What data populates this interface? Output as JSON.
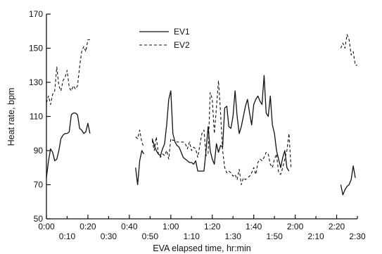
{
  "chart_data": {
    "type": "line",
    "title": "",
    "xlabel": "EVA elapsed time, hr:min",
    "ylabel": "Heat rate, bpm",
    "xlim": [
      0,
      150
    ],
    "ylim": [
      50,
      170
    ],
    "x_unit": "minutes",
    "grid": false,
    "legend_position": "top-center",
    "x_ticks_row1": [
      {
        "value": 0,
        "label": "0:00"
      },
      {
        "value": 20,
        "label": "0:20"
      },
      {
        "value": 40,
        "label": "0:40"
      },
      {
        "value": 60,
        "label": "1:00"
      },
      {
        "value": 80,
        "label": "1:20"
      },
      {
        "value": 100,
        "label": "1:40"
      },
      {
        "value": 120,
        "label": "2:00"
      },
      {
        "value": 140,
        "label": "2:20"
      }
    ],
    "x_ticks_row2": [
      {
        "value": 10,
        "label": "0:10"
      },
      {
        "value": 30,
        "label": "0:30"
      },
      {
        "value": 50,
        "label": "0:50"
      },
      {
        "value": 70,
        "label": "1:10"
      },
      {
        "value": 90,
        "label": "1:30"
      },
      {
        "value": 110,
        "label": "1:50"
      },
      {
        "value": 130,
        "label": "2:10"
      },
      {
        "value": 150,
        "label": "2:30"
      }
    ],
    "y_ticks": [
      {
        "value": 50,
        "label": "50"
      },
      {
        "value": 70,
        "label": "70"
      },
      {
        "value": 90,
        "label": "90"
      },
      {
        "value": 110,
        "label": "110"
      },
      {
        "value": 130,
        "label": "130"
      },
      {
        "value": 150,
        "label": "150"
      },
      {
        "value": 170,
        "label": "170"
      }
    ],
    "series": [
      {
        "name": "EV1",
        "style": "solid",
        "color": "#111111",
        "segments": [
          [
            [
              0,
              74
            ],
            [
              1,
              84
            ],
            [
              2,
              91
            ],
            [
              3,
              89
            ],
            [
              4,
              84
            ],
            [
              5,
              85
            ],
            [
              6,
              90
            ],
            [
              7,
              97
            ],
            [
              8,
              99
            ],
            [
              9,
              100
            ],
            [
              10,
              100
            ],
            [
              11,
              101
            ],
            [
              12,
              111
            ],
            [
              13,
              112
            ],
            [
              14,
              112
            ],
            [
              15,
              111
            ],
            [
              16,
              103
            ],
            [
              17,
              102
            ],
            [
              18,
              100
            ],
            [
              19,
              101
            ],
            [
              20,
              106
            ],
            [
              21,
              100
            ]
          ],
          [
            [
              43,
              80
            ],
            [
              44,
              70
            ],
            [
              45,
              84
            ],
            [
              46,
              90
            ],
            [
              47,
              88
            ]
          ],
          [
            [
              51,
              97
            ],
            [
              52,
              93
            ],
            [
              53,
              90
            ],
            [
              54,
              88
            ],
            [
              55,
              87
            ],
            [
              56,
              91
            ],
            [
              57,
              94
            ],
            [
              58,
              105
            ],
            [
              59,
              120
            ],
            [
              60,
              125
            ],
            [
              61,
              100
            ],
            [
              62,
              95
            ],
            [
              63,
              93
            ],
            [
              64,
              92
            ],
            [
              65,
              89
            ],
            [
              66,
              86
            ],
            [
              67,
              85
            ],
            [
              68,
              84
            ],
            [
              69,
              83
            ],
            [
              70,
              83
            ],
            [
              71,
              82
            ],
            [
              72,
              84
            ],
            [
              73,
              78
            ],
            [
              74,
              78
            ],
            [
              75,
              78
            ],
            [
              76,
              78
            ],
            [
              77,
              90
            ],
            [
              78,
              104
            ],
            [
              79,
              90
            ],
            [
              80,
              85
            ],
            [
              81,
              82
            ],
            [
              82,
              94
            ],
            [
              83,
              89
            ],
            [
              84,
              93
            ],
            [
              85,
              92
            ],
            [
              86,
              115
            ],
            [
              87,
              116
            ],
            [
              88,
              104
            ],
            [
              89,
              103
            ],
            [
              90,
              110
            ],
            [
              91,
              125
            ],
            [
              92,
              110
            ],
            [
              93,
              100
            ],
            [
              94,
              104
            ],
            [
              95,
              110
            ],
            [
              96,
              116
            ],
            [
              97,
              120
            ],
            [
              98,
              112
            ],
            [
              99,
              105
            ],
            [
              100,
              117
            ],
            [
              101,
              120
            ],
            [
              102,
              122
            ],
            [
              103,
              119
            ],
            [
              104,
              117
            ],
            [
              105,
              134
            ],
            [
              106,
              112
            ],
            [
              107,
              110
            ],
            [
              108,
              122
            ],
            [
              109,
              105
            ],
            [
              110,
              100
            ],
            [
              111,
              90
            ],
            [
              112,
              85
            ],
            [
              113,
              80
            ],
            [
              114,
              86
            ],
            [
              115,
              90
            ],
            [
              116,
              80
            ],
            [
              117,
              78
            ]
          ],
          [
            [
              142,
              70
            ],
            [
              143,
              64
            ],
            [
              144,
              67
            ],
            [
              145,
              69
            ],
            [
              146,
              70
            ],
            [
              147,
              73
            ],
            [
              148,
              81
            ],
            [
              149,
              74
            ]
          ]
        ]
      },
      {
        "name": "EV2",
        "style": "dashed",
        "color": "#111111",
        "segments": [
          [
            [
              0,
              118
            ],
            [
              1,
              122
            ],
            [
              2,
              117
            ],
            [
              3,
              123
            ],
            [
              4,
              125
            ],
            [
              5,
              139
            ],
            [
              6,
              128
            ],
            [
              7,
              125
            ],
            [
              8,
              131
            ],
            [
              9,
              133
            ],
            [
              10,
              137
            ],
            [
              11,
              127
            ],
            [
              12,
              125
            ],
            [
              13,
              128
            ],
            [
              14,
              126
            ],
            [
              15,
              128
            ],
            [
              16,
              139
            ],
            [
              17,
              148
            ],
            [
              18,
              151
            ],
            [
              19,
              148
            ],
            [
              20,
              155
            ],
            [
              21,
              155
            ]
          ],
          [
            [
              43,
              98
            ],
            [
              44,
              97
            ],
            [
              45,
              102
            ],
            [
              46,
              95
            ],
            [
              47,
              92
            ]
          ],
          [
            [
              51,
              96
            ],
            [
              52,
              90
            ],
            [
              53,
              98
            ],
            [
              54,
              88
            ],
            [
              55,
              86
            ],
            [
              56,
              88
            ],
            [
              57,
              87
            ],
            [
              58,
              90
            ],
            [
              59,
              85
            ],
            [
              60,
              97
            ],
            [
              61,
              96
            ],
            [
              62,
              96
            ],
            [
              63,
              95
            ],
            [
              64,
              95
            ],
            [
              65,
              95
            ],
            [
              66,
              95
            ],
            [
              67,
              94
            ],
            [
              68,
              91
            ],
            [
              69,
              95
            ],
            [
              70,
              90
            ],
            [
              71,
              92
            ],
            [
              72,
              91
            ],
            [
              73,
              86
            ],
            [
              74,
              93
            ],
            [
              75,
              100
            ],
            [
              76,
              102
            ],
            [
              77,
              87
            ],
            [
              78,
              88
            ],
            [
              79,
              124
            ],
            [
              80,
              120
            ],
            [
              81,
              100
            ],
            [
              82,
              115
            ],
            [
              83,
              131
            ],
            [
              84,
              112
            ],
            [
              85,
              90
            ],
            [
              86,
              80
            ],
            [
              87,
              77
            ],
            [
              88,
              78
            ],
            [
              89,
              77
            ],
            [
              90,
              75
            ],
            [
              91,
              76
            ],
            [
              92,
              73
            ],
            [
              93,
              79
            ],
            [
              94,
              70
            ],
            [
              95,
              74
            ],
            [
              96,
              73
            ],
            [
              97,
              74
            ],
            [
              98,
              75
            ],
            [
              99,
              77
            ],
            [
              100,
              80
            ],
            [
              101,
              76
            ],
            [
              102,
              83
            ],
            [
              103,
              85
            ],
            [
              104,
              84
            ],
            [
              105,
              86
            ],
            [
              106,
              89
            ],
            [
              107,
              88
            ],
            [
              108,
              82
            ],
            [
              109,
              80
            ],
            [
              110,
              85
            ],
            [
              111,
              88
            ],
            [
              112,
              77
            ],
            [
              113,
              76
            ],
            [
              114,
              80
            ],
            [
              115,
              85
            ],
            [
              116,
              90
            ],
            [
              117,
              100
            ],
            [
              118,
              80
            ]
          ],
          [
            [
              142,
              150
            ],
            [
              143,
              153
            ],
            [
              144,
              150
            ],
            [
              145,
              158
            ],
            [
              146,
              155
            ],
            [
              147,
              146
            ],
            [
              148,
              148
            ],
            [
              149,
              140
            ],
            [
              150,
              140
            ]
          ]
        ]
      }
    ]
  }
}
